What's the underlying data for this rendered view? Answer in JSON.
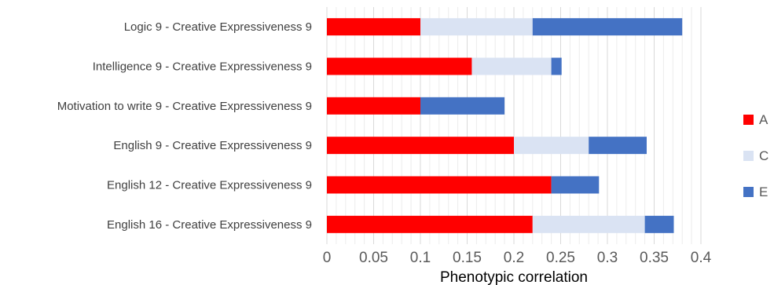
{
  "chart_data": {
    "type": "bar",
    "orientation": "horizontal",
    "stacked": true,
    "categories": [
      "Logic 9 - Creative Expressiveness 9",
      "Intelligence 9 - Creative Expressiveness 9",
      "Motivation to write 9 - Creative Expressiveness 9",
      "English 9 - Creative Expressiveness 9",
      "English 12 - Creative Expressiveness 9",
      "English 16 - Creative Expressiveness 9"
    ],
    "series": [
      {
        "name": "A",
        "color": "#ff0000",
        "values": [
          0.1,
          0.155,
          0.1,
          0.2,
          0.24,
          0.22
        ]
      },
      {
        "name": "C",
        "color": "#dae3f3",
        "values": [
          0.12,
          0.085,
          0.0,
          0.08,
          0.0,
          0.12
        ]
      },
      {
        "name": "E",
        "color": "#4472c4",
        "values": [
          0.16,
          0.011,
          0.09,
          0.062,
          0.051,
          0.031
        ]
      }
    ],
    "xlabel": "Phenotypic correlation",
    "xlim": [
      0,
      0.4
    ],
    "xticks": [
      "0",
      "0.05",
      "0.1",
      "0.15",
      "0.2",
      "0.25",
      "0.3",
      "0.35",
      "0.4"
    ],
    "grid": true,
    "legend_position": "right"
  }
}
